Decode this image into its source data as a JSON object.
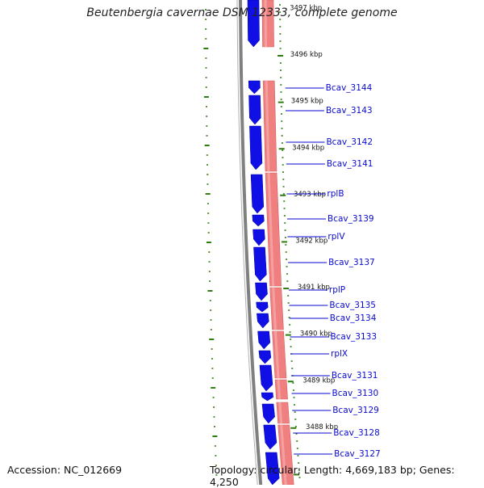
{
  "title": "Beutenbergia cavernae DSM 12333, complete genome",
  "footer": {
    "accession": "Accession: NC_012669",
    "summary": "Topology: circular; Length: 4,669,183 bp; Genes: 4,250"
  },
  "colors": {
    "forward_gene": "#1010e6",
    "reverse_gene": "#f08080",
    "backbone": "#808080",
    "tick": "#2e7d10",
    "label": "#0a0ad0"
  },
  "scale_labels": [
    "3497 kbp",
    "3496 kbp",
    "3495 kbp",
    "3494 kbp",
    "3493 kbp",
    "3492 kbp",
    "3491 kbp",
    "3490 kbp",
    "3489 kbp",
    "3488 kbp"
  ],
  "genes": [
    {
      "label": "Bcav_3144"
    },
    {
      "label": "Bcav_3143"
    },
    {
      "label": "Bcav_3142"
    },
    {
      "label": "Bcav_3141"
    },
    {
      "label": "rplB"
    },
    {
      "label": "Bcav_3139"
    },
    {
      "label": "rplV"
    },
    {
      "label": "Bcav_3137"
    },
    {
      "label": "rplP"
    },
    {
      "label": "Bcav_3135"
    },
    {
      "label": "Bcav_3134"
    },
    {
      "label": "Bcav_3133"
    },
    {
      "label": "rplX"
    },
    {
      "label": "Bcav_3131"
    },
    {
      "label": "Bcav_3130"
    },
    {
      "label": "Bcav_3129"
    },
    {
      "label": "Bcav_3128"
    },
    {
      "label": "Bcav_3127"
    }
  ]
}
